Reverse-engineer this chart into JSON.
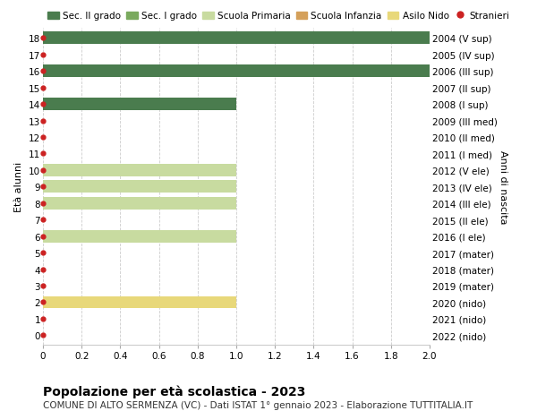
{
  "ages": [
    18,
    17,
    16,
    15,
    14,
    13,
    12,
    11,
    10,
    9,
    8,
    7,
    6,
    5,
    4,
    3,
    2,
    1,
    0
  ],
  "right_labels": [
    "2004 (V sup)",
    "2005 (IV sup)",
    "2006 (III sup)",
    "2007 (II sup)",
    "2008 (I sup)",
    "2009 (III med)",
    "2010 (II med)",
    "2011 (I med)",
    "2012 (V ele)",
    "2013 (IV ele)",
    "2014 (III ele)",
    "2015 (II ele)",
    "2016 (I ele)",
    "2017 (mater)",
    "2018 (mater)",
    "2019 (mater)",
    "2020 (nido)",
    "2021 (nido)",
    "2022 (nido)"
  ],
  "bar_values": [
    2.0,
    0,
    2.0,
    0,
    1.0,
    0,
    0,
    0,
    1.0,
    1.0,
    1.0,
    0,
    1.0,
    0,
    0,
    0,
    1.0,
    0,
    0
  ],
  "bar_colors": [
    "#4a7c4e",
    "#4a7c4e",
    "#4a7c4e",
    "#4a7c4e",
    "#4a7c4e",
    "#7aaa5e",
    "#7aaa5e",
    "#7aaa5e",
    "#c8dba0",
    "#c8dba0",
    "#c8dba0",
    "#c8dba0",
    "#c8dba0",
    "#d4a05a",
    "#d4a05a",
    "#d4a05a",
    "#e8d87a",
    "#e8d87a",
    "#e8d87a"
  ],
  "dot_color": "#cc2222",
  "dot_markersize": 3.5,
  "xlim": [
    0,
    2.0
  ],
  "xticks": [
    0,
    0.2,
    0.4,
    0.6,
    0.8,
    1.0,
    1.2,
    1.4,
    1.6,
    1.8,
    2.0
  ],
  "xtick_labels": [
    "0",
    "0.2",
    "0.4",
    "0.6",
    "0.8",
    "1.0",
    "1.2",
    "1.4",
    "1.6",
    "1.8",
    "2.0"
  ],
  "ylabel_left": "Età alunni",
  "ylabel_right": "Anni di nascita",
  "title": "Popolazione per età scolastica - 2023",
  "subtitle": "COMUNE DI ALTO SERMENZA (VC) - Dati ISTAT 1° gennaio 2023 - Elaborazione TUTTITALIA.IT",
  "legend_labels": [
    "Sec. II grado",
    "Sec. I grado",
    "Scuola Primaria",
    "Scuola Infanzia",
    "Asilo Nido",
    "Stranieri"
  ],
  "legend_colors": [
    "#4a7c4e",
    "#7aaa5e",
    "#c8dba0",
    "#d4a05a",
    "#e8d87a",
    "#cc2222"
  ],
  "bar_height": 0.75,
  "grid_color": "#cccccc",
  "bg_color": "#ffffff",
  "title_fontsize": 10,
  "subtitle_fontsize": 7.5,
  "axis_label_fontsize": 8,
  "tick_fontsize": 7.5,
  "legend_fontsize": 7.5
}
